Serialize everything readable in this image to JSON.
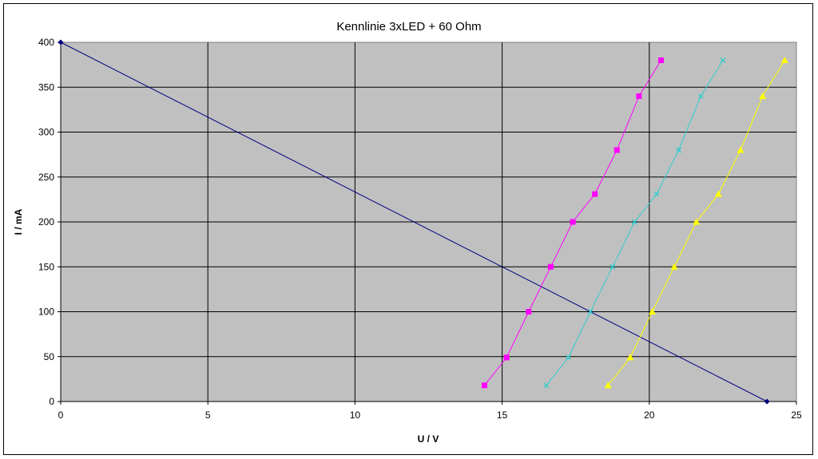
{
  "chart_data": {
    "type": "line",
    "title": "Kennlinie 3xLED + 60 Ohm",
    "xlabel": "U / V",
    "ylabel": "I / mA",
    "xlim": [
      0,
      25
    ],
    "ylim": [
      0,
      400
    ],
    "x_ticks": [
      "0",
      "5",
      "10",
      "15",
      "20",
      "25"
    ],
    "y_ticks": [
      "0",
      "50",
      "100",
      "150",
      "200",
      "250",
      "300",
      "350",
      "400"
    ],
    "grid": true,
    "plot_background": "#c0c0c0",
    "series": [
      {
        "color": "#000080",
        "marker": "diamond",
        "points": [
          [
            0,
            400
          ],
          [
            24,
            0
          ]
        ]
      },
      {
        "color": "#ff00ff",
        "marker": "square",
        "points": [
          [
            14.4,
            18
          ],
          [
            15.15,
            49
          ],
          [
            15.9,
            100
          ],
          [
            16.65,
            150
          ],
          [
            17.4,
            200
          ],
          [
            18.15,
            231
          ],
          [
            18.9,
            280
          ],
          [
            19.65,
            340
          ],
          [
            20.4,
            380
          ]
        ]
      },
      {
        "color": "#33cccc",
        "marker": "x",
        "points": [
          [
            16.5,
            18
          ],
          [
            17.25,
            49
          ],
          [
            18.0,
            100
          ],
          [
            18.75,
            150
          ],
          [
            19.5,
            200
          ],
          [
            20.25,
            231
          ],
          [
            21.0,
            280
          ],
          [
            21.75,
            340
          ],
          [
            22.5,
            380
          ]
        ]
      },
      {
        "color": "#ffff00",
        "marker": "triangle",
        "points": [
          [
            18.6,
            18
          ],
          [
            19.35,
            49
          ],
          [
            20.1,
            100
          ],
          [
            20.85,
            150
          ],
          [
            21.6,
            200
          ],
          [
            22.35,
            231
          ],
          [
            23.1,
            280
          ],
          [
            23.85,
            340
          ],
          [
            24.6,
            380
          ]
        ]
      }
    ]
  }
}
